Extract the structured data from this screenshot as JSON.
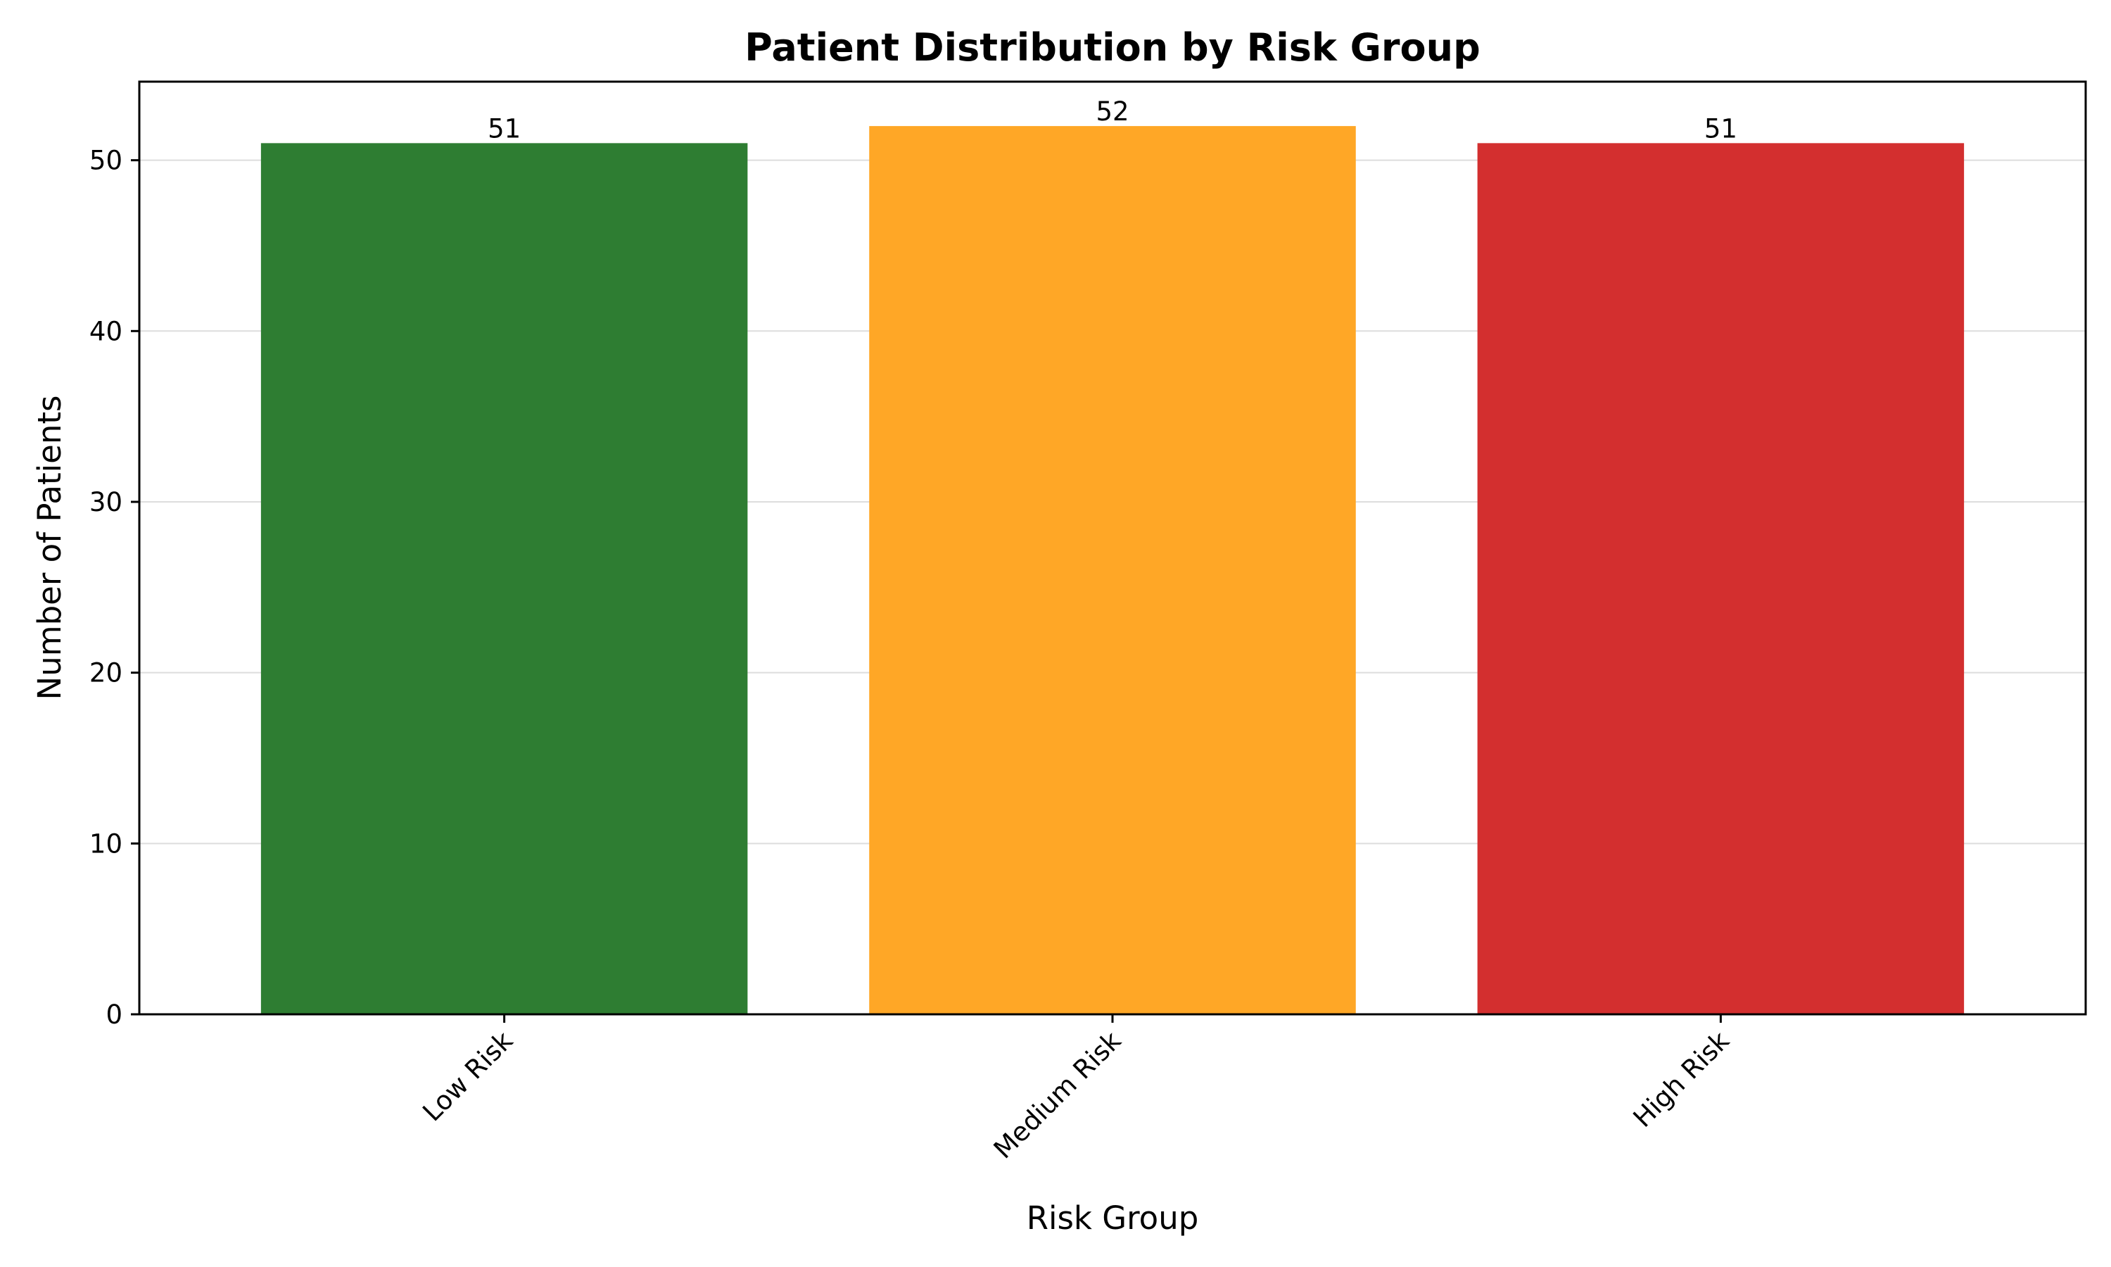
{
  "chart_data": {
    "type": "bar",
    "title": "Patient Distribution by Risk Group",
    "xlabel": "Risk Group",
    "ylabel": "Number of Patients",
    "categories": [
      "Low Risk",
      "Medium Risk",
      "High Risk"
    ],
    "values": [
      51,
      52,
      51
    ],
    "data_labels": [
      "51",
      "52",
      "51"
    ],
    "colors": [
      "#2e7d32",
      "#ffa726",
      "#d32f2f"
    ],
    "ylim": [
      0,
      54.6
    ],
    "yticks": [
      0,
      10,
      20,
      30,
      40,
      50
    ],
    "ytick_labels": [
      "0",
      "10",
      "20",
      "30",
      "40",
      "50"
    ],
    "grid": "y-major, light",
    "legend": "none"
  }
}
